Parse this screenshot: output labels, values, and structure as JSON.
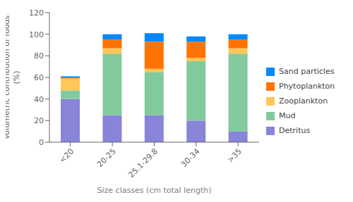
{
  "chart_data": {
    "type": "bar",
    "stacked": true,
    "categories": [
      "<20",
      "20-25",
      "25.1-29.8",
      "30-34",
      ">35"
    ],
    "series": [
      {
        "name": "Detritus",
        "color": "#8884d8",
        "values": [
          40,
          25,
          25,
          20,
          10
        ]
      },
      {
        "name": "Mud",
        "color": "#82ca9d",
        "values": [
          8,
          57,
          40,
          55,
          72
        ]
      },
      {
        "name": "Zooplankton",
        "color": "#ffc658",
        "values": [
          11,
          5,
          3,
          3,
          5
        ]
      },
      {
        "name": "Phytoplankton",
        "color": "#ff7300",
        "values": [
          1,
          8,
          25,
          15,
          8
        ]
      },
      {
        "name": "Sand particles",
        "color": "#0088fe",
        "values": [
          1,
          5,
          8,
          5,
          5
        ]
      }
    ],
    "xlabel": "Size classes (cm total length)",
    "ylabel": "Volumetric contribution of foods\n(%)",
    "ylim": [
      0,
      120
    ],
    "yticks": [
      0,
      20,
      40,
      60,
      80,
      100,
      120
    ],
    "legend": "right",
    "grid": false
  }
}
